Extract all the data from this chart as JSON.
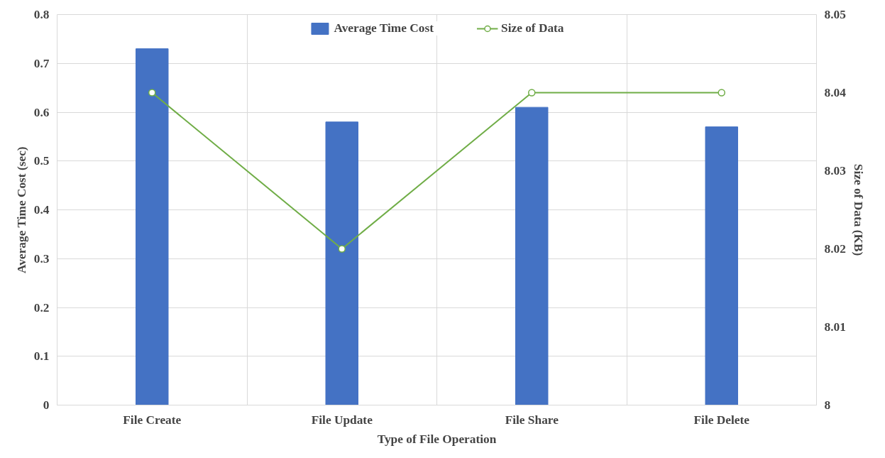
{
  "chart_data": {
    "type": "bar",
    "xlabel": "Type of File Operation",
    "ylabel": "Average Time Cost (sec)",
    "y2label": "Size of Data (KB)",
    "categories": [
      "File Create",
      "File Update",
      "File Share",
      "File Delete"
    ],
    "series": [
      {
        "name": "Average Time Cost",
        "color": "#4472c4",
        "values": [
          0.73,
          0.58,
          0.61,
          0.57
        ]
      },
      {
        "name": "Size of Data",
        "type": "line",
        "axis": "y2",
        "color": "#70ad47",
        "marker": "circle",
        "values": [
          8.04,
          8.02,
          8.04,
          8.04
        ]
      }
    ],
    "ylim": [
      0,
      0.8
    ],
    "yticks": [
      0,
      0.1,
      0.2,
      0.3,
      0.4,
      0.5,
      0.6,
      0.7,
      0.8
    ],
    "y2lim": [
      8,
      8.05
    ],
    "y2ticks": [
      8,
      8.01,
      8.02,
      8.03,
      8.04,
      8.05
    ],
    "grid": true,
    "legend": "top"
  }
}
